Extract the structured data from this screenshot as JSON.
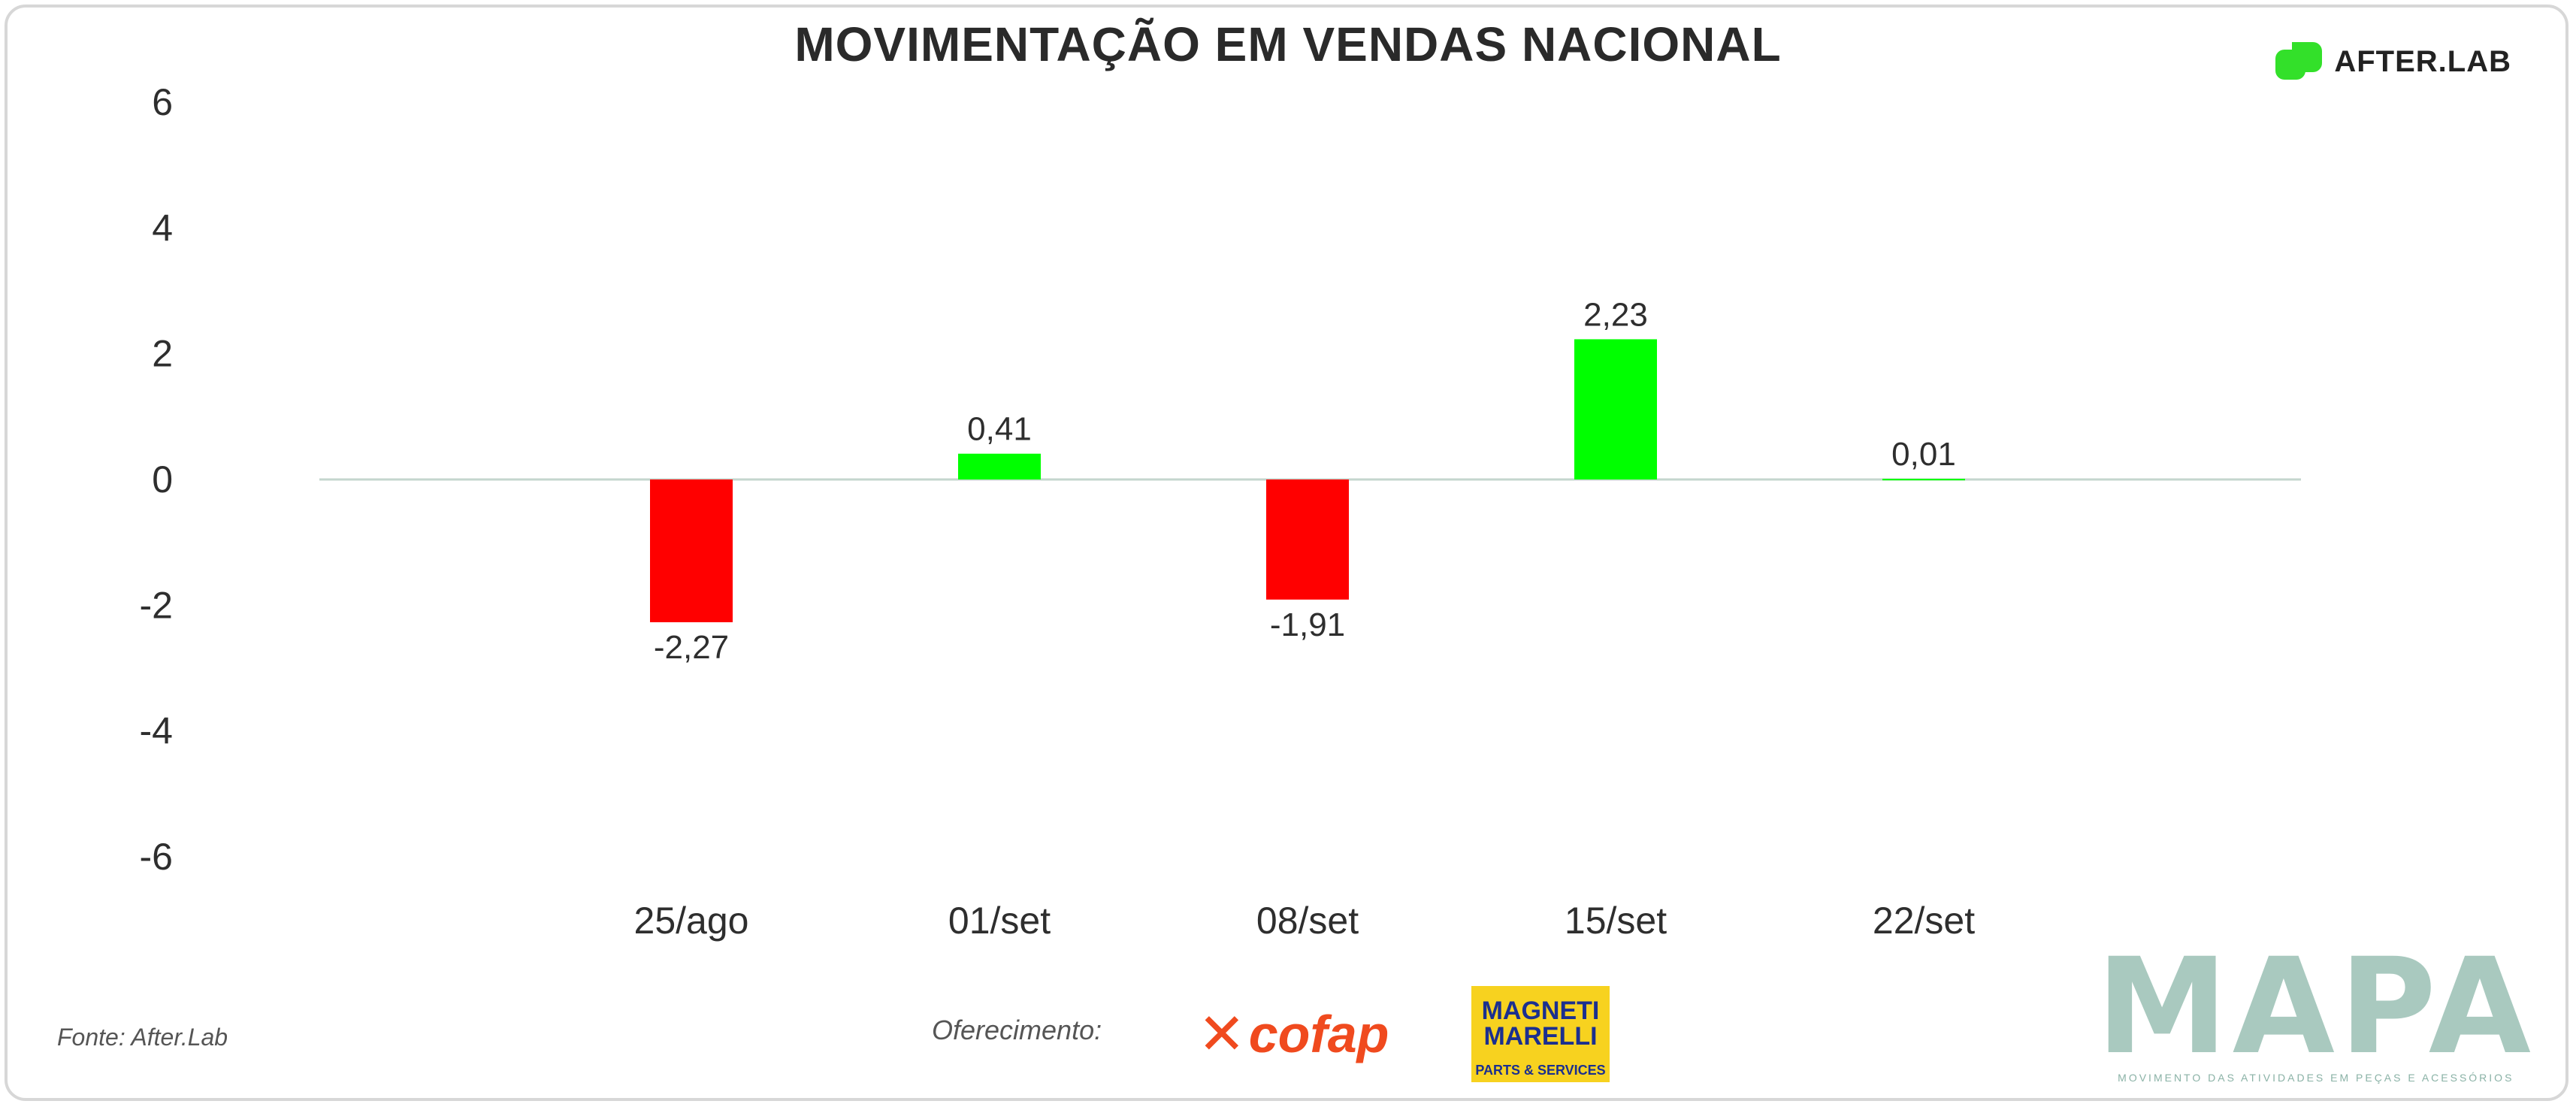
{
  "header": {
    "title": "MOVIMENTAÇÃO EM VENDAS NACIONAL",
    "brand_logo_text": "AFTER.LAB"
  },
  "footer": {
    "source": "Fonte: After.Lab",
    "sponsor_label": "Oferecimento:",
    "sponsor_1": "cofap",
    "sponsor_2_line1": "MAGNETI",
    "sponsor_2_line2": "MARELLI",
    "sponsor_2_line3": "PARTS & SERVICES",
    "mapa_logo": "MAPA",
    "mapa_tagline": "MOVIMENTO DAS ATIVIDADES EM PEÇAS E ACESSÓRIOS"
  },
  "colors": {
    "positive": "#00ff00",
    "negative": "#ff0000",
    "axis_line": "#c4d6ce",
    "brand_green": "#33e02a",
    "mapa": "#a9c9bf"
  },
  "chart_data": {
    "type": "bar",
    "title": "MOVIMENTAÇÃO EM VENDAS NACIONAL",
    "categories": [
      "25/ago",
      "01/set",
      "08/set",
      "15/set",
      "22/set"
    ],
    "values": [
      -2.27,
      0.41,
      -1.91,
      2.23,
      0.01
    ],
    "value_labels": [
      "-2,27",
      "0,41",
      "-1,91",
      "2,23",
      "0,01"
    ],
    "y_ticks": [
      6,
      4,
      2,
      0,
      -2,
      -4,
      -6
    ],
    "ylim": [
      -6,
      6
    ],
    "xlabel": "",
    "ylabel": "",
    "grid": false,
    "legend": "none"
  }
}
